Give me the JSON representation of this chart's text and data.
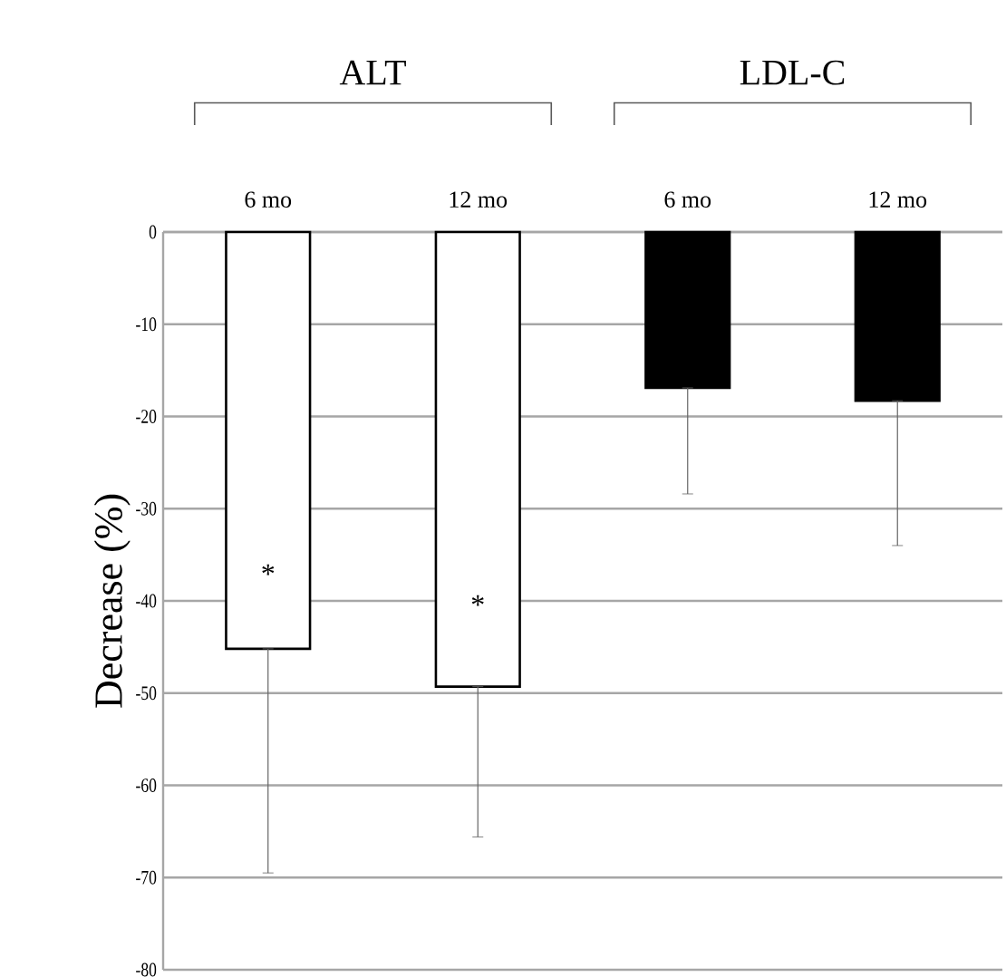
{
  "chart_data": {
    "type": "bar",
    "ylabel": "Decrease (%)",
    "categories": [
      "6 mo",
      "12 mo",
      "6 mo",
      "12 mo"
    ],
    "series": [
      {
        "colors": [
          "#ffffff",
          "#ffffff",
          "#000000",
          "#000000"
        ],
        "values": [
          -45.2,
          -49.3,
          -16.9,
          -18.3
        ],
        "errors": [
          [
            -69.5,
            -45.2
          ],
          [
            -65.6,
            -49.3
          ],
          [
            -28.4,
            -16.9
          ],
          [
            -34.0,
            -18.3
          ]
        ]
      }
    ],
    "ylim": [
      -80,
      0
    ],
    "yticks": [
      -80,
      -70,
      -60,
      -50,
      -40,
      -30,
      -20,
      -10,
      0
    ],
    "grid": "y",
    "annotations": [
      "ALT",
      "LDL-C",
      "*",
      "*"
    ]
  }
}
